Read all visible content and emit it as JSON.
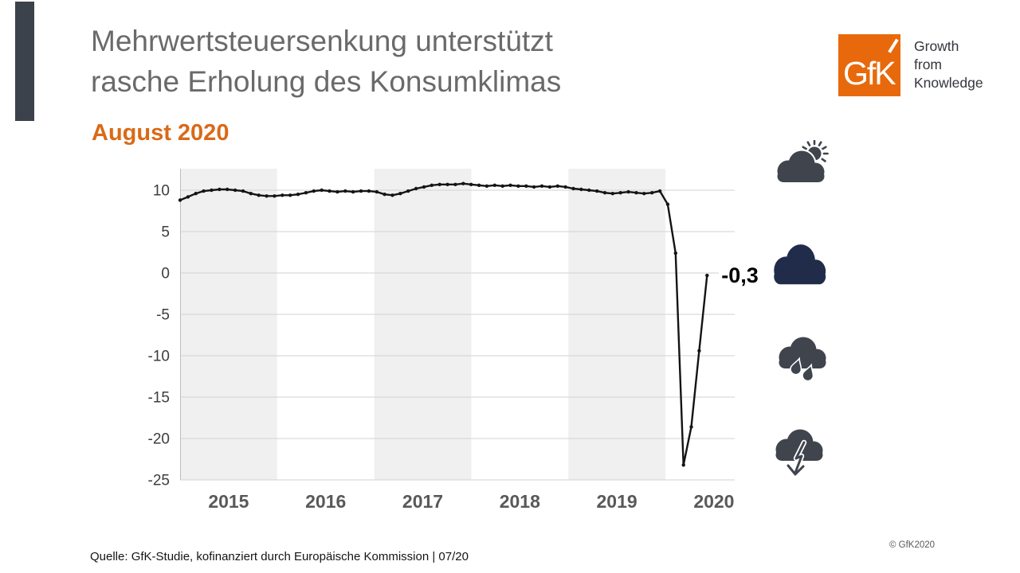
{
  "header": {
    "title_lines": [
      "Mehrwertsteuersenkung unterstützt",
      "rasche Erholung des Konsumklimas"
    ],
    "subtitle": "August 2020",
    "title_color": "#6A6A6A",
    "accent_color": "#D96A17"
  },
  "logo": {
    "mark": "GfK",
    "tagline_lines": [
      "Growth",
      "from",
      "Knowledge"
    ],
    "brand_orange": "#E8690B"
  },
  "chart_data": {
    "type": "line",
    "title": "",
    "xlabel": "",
    "ylabel": "",
    "frequency": "monthly",
    "x_start": "2015-01",
    "x_end": "2020-08",
    "series": [
      {
        "name": "Konsumklima",
        "values": [
          8.8,
          9.2,
          9.6,
          9.9,
          10.0,
          10.1,
          10.1,
          10.0,
          9.9,
          9.6,
          9.4,
          9.3,
          9.3,
          9.4,
          9.4,
          9.5,
          9.7,
          9.9,
          10.0,
          9.9,
          9.8,
          9.9,
          9.8,
          9.9,
          9.9,
          9.8,
          9.5,
          9.4,
          9.6,
          9.9,
          10.2,
          10.4,
          10.6,
          10.7,
          10.7,
          10.7,
          10.8,
          10.7,
          10.6,
          10.5,
          10.6,
          10.5,
          10.6,
          10.5,
          10.5,
          10.4,
          10.5,
          10.4,
          10.5,
          10.4,
          10.2,
          10.1,
          10.0,
          9.9,
          9.7,
          9.6,
          9.7,
          9.8,
          9.7,
          9.6,
          9.7,
          9.9,
          8.3,
          2.4,
          -23.2,
          -18.6,
          -9.4,
          -0.3
        ]
      }
    ],
    "x_tick_labels": [
      "2015",
      "2016",
      "2017",
      "2018",
      "2019",
      "2020"
    ],
    "shaded_years": [
      "2015",
      "2017",
      "2019"
    ],
    "y_ticks": [
      10,
      5,
      0,
      -5,
      -10,
      -15,
      -20,
      -25
    ],
    "ylim": [
      -25,
      12.6
    ],
    "grid": "horizontal",
    "legend": "none",
    "end_label": "-0,3",
    "end_value": -0.3,
    "colors": {
      "line": "#141414",
      "band": "#F0F0F0",
      "grid": "#D2D2D2",
      "axis": "#BDBDBD",
      "tick": "#3D3D3D",
      "xtick": "#595959"
    }
  },
  "side_icons": [
    {
      "name": "sun-behind-cloud-icon",
      "color": "#3F444D"
    },
    {
      "name": "dark-cloud-icon",
      "color": "#202C49"
    },
    {
      "name": "rain-cloud-icon",
      "color": "#3F444D"
    },
    {
      "name": "cloud-falling-arrow-icon",
      "color": "#3F444D"
    }
  ],
  "footer": {
    "source": "Quelle: GfK-Studie, kofinanziert durch Europäische Kommission | 07/20",
    "copyright": "© GfK2020"
  }
}
